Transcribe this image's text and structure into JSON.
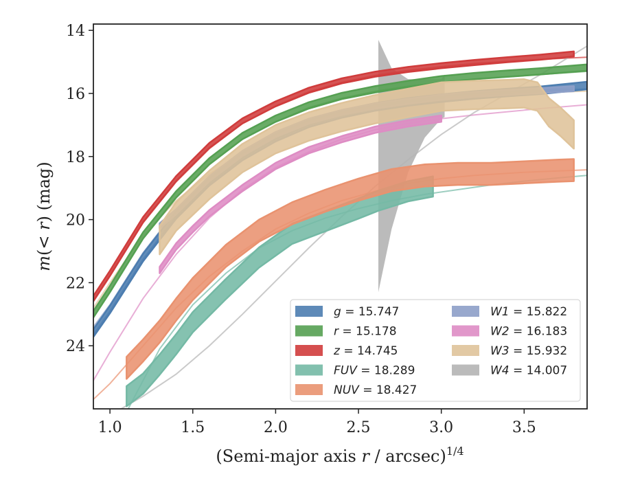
{
  "chart_data": {
    "type": "line",
    "title": "",
    "xlabel": "(Semi-major axis r / arcsec)",
    "xlabel_parts": [
      "(Semi-major axis ",
      "r",
      " / arcsec)",
      "1/4"
    ],
    "ylabel": "m(< r) (mag)",
    "ylabel_parts": [
      "m",
      "(< ",
      "r",
      ") (mag)"
    ],
    "xlim": [
      0.9,
      3.88
    ],
    "ylim": [
      26.0,
      13.8
    ],
    "y_inverted": true,
    "xticks": [
      1.0,
      1.5,
      2.0,
      2.5,
      3.0,
      3.5
    ],
    "xtick_labels": [
      "1.0",
      "1.5",
      "2.0",
      "2.5",
      "3.0",
      "3.5"
    ],
    "yticks": [
      14,
      16,
      18,
      20,
      22,
      24
    ],
    "ytick_labels": [
      "14",
      "16",
      "18",
      "20",
      "22",
      "24"
    ],
    "grid": false,
    "legend_placement": "lower-right",
    "series": [
      {
        "key": "g",
        "name": "g",
        "value": "15.747",
        "color": "#4c7db0",
        "model": [
          [
            0.9,
            23.65
          ],
          [
            1.0,
            22.9
          ],
          [
            1.2,
            21.25
          ],
          [
            1.4,
            19.9
          ],
          [
            1.6,
            18.85
          ],
          [
            1.8,
            18.05
          ],
          [
            2.0,
            17.45
          ],
          [
            2.2,
            17.0
          ],
          [
            2.4,
            16.7
          ],
          [
            2.6,
            16.48
          ],
          [
            2.8,
            16.32
          ],
          [
            3.0,
            16.2
          ],
          [
            3.2,
            16.1
          ],
          [
            3.4,
            16.02
          ],
          [
            3.6,
            15.95
          ],
          [
            3.88,
            15.87
          ]
        ],
        "data": [
          [
            0.9,
            23.6
          ],
          [
            1.0,
            22.85
          ],
          [
            1.2,
            21.2
          ],
          [
            1.4,
            19.85
          ],
          [
            1.6,
            18.8
          ],
          [
            1.8,
            18.0
          ],
          [
            2.0,
            17.4
          ],
          [
            2.2,
            16.95
          ],
          [
            2.4,
            16.65
          ],
          [
            2.6,
            16.43
          ],
          [
            2.8,
            16.27
          ],
          [
            3.0,
            16.15
          ],
          [
            3.2,
            16.05
          ],
          [
            3.4,
            15.97
          ],
          [
            3.6,
            15.9
          ],
          [
            3.88,
            15.75
          ]
        ],
        "band": 0.12
      },
      {
        "key": "r",
        "name": "r",
        "value": "15.178",
        "color": "#55a052",
        "model": [
          [
            0.9,
            23.1
          ],
          [
            1.0,
            22.3
          ],
          [
            1.2,
            20.6
          ],
          [
            1.4,
            19.3
          ],
          [
            1.6,
            18.25
          ],
          [
            1.8,
            17.45
          ],
          [
            2.0,
            16.9
          ],
          [
            2.2,
            16.45
          ],
          [
            2.4,
            16.15
          ],
          [
            2.6,
            15.93
          ],
          [
            2.8,
            15.77
          ],
          [
            3.0,
            15.65
          ],
          [
            3.2,
            15.55
          ],
          [
            3.4,
            15.47
          ],
          [
            3.6,
            15.4
          ],
          [
            3.88,
            15.3
          ]
        ],
        "data": [
          [
            0.9,
            23.0
          ],
          [
            1.0,
            22.2
          ],
          [
            1.2,
            20.5
          ],
          [
            1.4,
            19.2
          ],
          [
            1.6,
            18.15
          ],
          [
            1.8,
            17.35
          ],
          [
            2.0,
            16.8
          ],
          [
            2.2,
            16.38
          ],
          [
            2.4,
            16.08
          ],
          [
            2.6,
            15.87
          ],
          [
            2.8,
            15.7
          ],
          [
            3.0,
            15.55
          ],
          [
            3.2,
            15.45
          ],
          [
            3.4,
            15.37
          ],
          [
            3.6,
            15.3
          ],
          [
            3.88,
            15.18
          ]
        ],
        "band": 0.1
      },
      {
        "key": "z",
        "name": "z",
        "value": "14.745",
        "color": "#d03c3c",
        "model": [
          [
            0.9,
            22.6
          ],
          [
            1.0,
            21.8
          ],
          [
            1.2,
            20.1
          ],
          [
            1.4,
            18.8
          ],
          [
            1.6,
            17.75
          ],
          [
            1.8,
            16.95
          ],
          [
            2.0,
            16.4
          ],
          [
            2.2,
            15.95
          ],
          [
            2.4,
            15.65
          ],
          [
            2.6,
            15.43
          ],
          [
            2.8,
            15.27
          ],
          [
            3.0,
            15.15
          ],
          [
            3.2,
            15.05
          ],
          [
            3.4,
            14.98
          ],
          [
            3.6,
            14.92
          ],
          [
            3.88,
            14.85
          ]
        ],
        "data": [
          [
            0.9,
            22.5
          ],
          [
            1.0,
            21.7
          ],
          [
            1.2,
            20.0
          ],
          [
            1.4,
            18.7
          ],
          [
            1.6,
            17.65
          ],
          [
            1.8,
            16.87
          ],
          [
            2.0,
            16.33
          ],
          [
            2.2,
            15.9
          ],
          [
            2.4,
            15.6
          ],
          [
            2.6,
            15.39
          ],
          [
            2.8,
            15.24
          ],
          [
            3.0,
            15.12
          ],
          [
            3.2,
            15.02
          ],
          [
            3.4,
            14.93
          ],
          [
            3.6,
            14.85
          ],
          [
            3.8,
            14.75
          ]
        ],
        "band": 0.08
      },
      {
        "key": "FUV",
        "name": "FUV",
        "value": "18.289",
        "color": "#74b9a5",
        "model": [
          [
            1.1,
            26.1
          ],
          [
            1.3,
            24.1
          ],
          [
            1.5,
            22.7
          ],
          [
            1.7,
            21.7
          ],
          [
            1.9,
            20.9
          ],
          [
            2.1,
            20.35
          ],
          [
            2.3,
            19.95
          ],
          [
            2.5,
            19.65
          ],
          [
            2.7,
            19.4
          ],
          [
            2.9,
            19.2
          ],
          [
            3.1,
            19.05
          ],
          [
            3.3,
            18.9
          ],
          [
            3.5,
            18.78
          ],
          [
            3.7,
            18.68
          ],
          [
            3.88,
            18.6
          ]
        ],
        "data": [
          [
            1.1,
            25.6
          ],
          [
            1.2,
            25.2
          ],
          [
            1.3,
            24.6
          ],
          [
            1.4,
            23.95
          ],
          [
            1.5,
            23.25
          ],
          [
            1.7,
            22.2
          ],
          [
            1.9,
            21.2
          ],
          [
            2.1,
            20.45
          ],
          [
            2.3,
            20.05
          ],
          [
            2.5,
            19.65
          ],
          [
            2.62,
            19.4
          ],
          [
            2.8,
            19.1
          ],
          [
            2.95,
            18.95
          ]
        ],
        "band": 0.32
      },
      {
        "key": "NUV",
        "name": "NUV",
        "value": "18.427",
        "color": "#e9926f",
        "model": [
          [
            0.9,
            25.7
          ],
          [
            1.0,
            25.2
          ],
          [
            1.1,
            24.6
          ],
          [
            1.2,
            24.0
          ],
          [
            1.3,
            23.4
          ],
          [
            1.4,
            22.8
          ],
          [
            1.6,
            21.8
          ],
          [
            1.8,
            21.0
          ],
          [
            2.0,
            20.3
          ],
          [
            2.2,
            19.8
          ],
          [
            2.4,
            19.4
          ],
          [
            2.6,
            19.1
          ],
          [
            2.8,
            18.85
          ],
          [
            3.0,
            18.7
          ],
          [
            3.2,
            18.6
          ],
          [
            3.5,
            18.5
          ],
          [
            3.88,
            18.42
          ]
        ],
        "data": [
          [
            1.1,
            24.7
          ],
          [
            1.2,
            24.15
          ],
          [
            1.3,
            23.55
          ],
          [
            1.4,
            22.85
          ],
          [
            1.5,
            22.2
          ],
          [
            1.7,
            21.15
          ],
          [
            1.9,
            20.35
          ],
          [
            2.1,
            19.8
          ],
          [
            2.3,
            19.4
          ],
          [
            2.5,
            19.05
          ],
          [
            2.7,
            18.75
          ],
          [
            2.9,
            18.6
          ],
          [
            3.1,
            18.55
          ],
          [
            3.3,
            18.55
          ],
          [
            3.5,
            18.5
          ],
          [
            3.7,
            18.45
          ],
          [
            3.8,
            18.43
          ]
        ],
        "band": 0.35
      },
      {
        "key": "W1",
        "name": "W1",
        "value": "15.822",
        "color": "#8d9fc8",
        "model": [
          [
            0.9,
            23.4
          ],
          [
            1.0,
            22.7
          ],
          [
            1.2,
            21.05
          ],
          [
            1.4,
            19.7
          ],
          [
            1.6,
            18.65
          ],
          [
            1.8,
            17.85
          ],
          [
            2.0,
            17.25
          ],
          [
            2.2,
            16.85
          ],
          [
            2.4,
            16.55
          ],
          [
            2.6,
            16.35
          ],
          [
            2.8,
            16.2
          ],
          [
            3.0,
            16.08
          ],
          [
            3.2,
            16.0
          ],
          [
            3.4,
            15.94
          ],
          [
            3.6,
            15.9
          ],
          [
            3.88,
            15.85
          ]
        ],
        "data": [
          [
            1.3,
            20.2
          ],
          [
            1.4,
            19.75
          ],
          [
            1.6,
            18.7
          ],
          [
            1.8,
            17.9
          ],
          [
            2.0,
            17.3
          ],
          [
            2.2,
            16.88
          ],
          [
            2.4,
            16.6
          ],
          [
            2.6,
            16.4
          ],
          [
            2.8,
            16.25
          ],
          [
            3.0,
            16.12
          ],
          [
            3.2,
            16.03
          ],
          [
            3.4,
            15.97
          ],
          [
            3.6,
            15.91
          ],
          [
            3.8,
            15.85
          ]
        ],
        "band": 0.08
      },
      {
        "key": "W2",
        "name": "W2",
        "value": "16.183",
        "color": "#de8cc4",
        "model": [
          [
            0.9,
            25.1
          ],
          [
            1.0,
            24.2
          ],
          [
            1.2,
            22.5
          ],
          [
            1.4,
            21.1
          ],
          [
            1.6,
            19.95
          ],
          [
            1.8,
            19.05
          ],
          [
            2.0,
            18.35
          ],
          [
            2.2,
            17.85
          ],
          [
            2.4,
            17.45
          ],
          [
            2.6,
            17.15
          ],
          [
            2.8,
            16.95
          ],
          [
            3.0,
            16.8
          ],
          [
            3.2,
            16.68
          ],
          [
            3.4,
            16.58
          ],
          [
            3.6,
            16.48
          ],
          [
            3.88,
            16.36
          ]
        ],
        "data": [
          [
            1.3,
            21.6
          ],
          [
            1.4,
            20.85
          ],
          [
            1.5,
            20.3
          ],
          [
            1.6,
            19.8
          ],
          [
            1.8,
            19.0
          ],
          [
            2.0,
            18.3
          ],
          [
            2.2,
            17.8
          ],
          [
            2.4,
            17.45
          ],
          [
            2.6,
            17.15
          ],
          [
            2.8,
            16.95
          ],
          [
            3.0,
            16.8
          ]
        ],
        "band": 0.1
      },
      {
        "key": "W3",
        "name": "W3",
        "value": "15.932",
        "color": "#dfc39a",
        "model": [
          [
            0.9,
            22.8
          ],
          [
            1.0,
            22.0
          ],
          [
            1.2,
            20.5
          ],
          [
            1.4,
            19.4
          ],
          [
            1.6,
            18.55
          ],
          [
            1.8,
            17.9
          ],
          [
            2.0,
            17.4
          ],
          [
            2.2,
            17.0
          ],
          [
            2.4,
            16.7
          ],
          [
            2.6,
            16.47
          ],
          [
            2.8,
            16.3
          ],
          [
            3.0,
            16.18
          ],
          [
            3.2,
            16.08
          ],
          [
            3.4,
            16.02
          ],
          [
            3.6,
            15.97
          ],
          [
            3.88,
            15.93
          ]
        ],
        "data": [
          [
            1.3,
            20.65
          ],
          [
            1.4,
            19.9
          ],
          [
            1.6,
            18.9
          ],
          [
            1.8,
            18.05
          ],
          [
            2.0,
            17.45
          ],
          [
            2.2,
            17.05
          ],
          [
            2.4,
            16.75
          ],
          [
            2.6,
            16.5
          ],
          [
            2.8,
            16.3
          ],
          [
            3.0,
            16.1
          ],
          [
            3.2,
            16.05
          ],
          [
            3.4,
            16.02
          ],
          [
            3.5,
            16.0
          ],
          [
            3.58,
            16.1
          ],
          [
            3.65,
            16.6
          ],
          [
            3.72,
            16.9
          ],
          [
            3.78,
            17.2
          ],
          [
            3.8,
            17.3
          ]
        ],
        "band": 0.45
      },
      {
        "key": "W4",
        "name": "W4",
        "value": "14.007",
        "color": "#b4b4b4",
        "model": [
          [
            1.0,
            26.2
          ],
          [
            1.2,
            25.6
          ],
          [
            1.4,
            24.9
          ],
          [
            1.6,
            24.0
          ],
          [
            1.8,
            23.0
          ],
          [
            2.0,
            21.95
          ],
          [
            2.2,
            20.9
          ],
          [
            2.4,
            19.9
          ],
          [
            2.6,
            18.95
          ],
          [
            2.8,
            18.1
          ],
          [
            3.0,
            17.3
          ],
          [
            3.2,
            16.6
          ],
          [
            3.4,
            16.0
          ],
          [
            3.6,
            15.4
          ],
          [
            3.88,
            14.5
          ]
        ],
        "band_top": [
          [
            2.62,
            14.3
          ],
          [
            2.7,
            15.2
          ],
          [
            2.8,
            15.55
          ],
          [
            3.0,
            15.55
          ],
          [
            3.02,
            15.4
          ]
        ],
        "band_bot": [
          [
            2.62,
            22.3
          ],
          [
            2.7,
            20.3
          ],
          [
            2.8,
            18.5
          ],
          [
            2.9,
            17.4
          ],
          [
            3.0,
            16.8
          ],
          [
            3.02,
            16.75
          ]
        ]
      }
    ]
  }
}
